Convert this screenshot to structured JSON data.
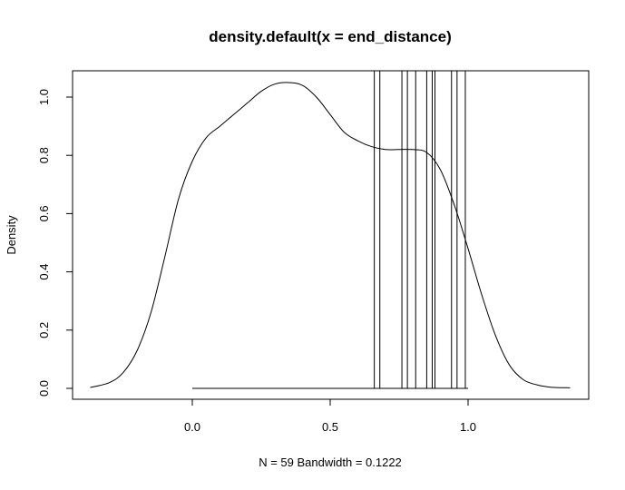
{
  "chart_data": {
    "type": "line",
    "title": "density.default(x = end_distance)",
    "xlabel": "N = 59   Bandwidth = 0.1222",
    "ylabel": "Density",
    "xlim": [
      -0.37,
      1.37
    ],
    "ylim": [
      0,
      1.05
    ],
    "x_ticks": [
      {
        "value": 0.0,
        "label": "0.0"
      },
      {
        "value": 0.5,
        "label": "0.5"
      },
      {
        "value": 1.0,
        "label": "1.0"
      }
    ],
    "y_ticks": [
      {
        "value": 0.0,
        "label": "0.0"
      },
      {
        "value": 0.2,
        "label": "0.2"
      },
      {
        "value": 0.4,
        "label": "0.4"
      },
      {
        "value": 0.6,
        "label": "0.6"
      },
      {
        "value": 0.8,
        "label": "0.8"
      },
      {
        "value": 1.0,
        "label": "1.0"
      }
    ],
    "grid": false,
    "legend": "none",
    "density_curve": {
      "x": [
        -0.37,
        -0.3,
        -0.25,
        -0.2,
        -0.15,
        -0.1,
        -0.05,
        0.0,
        0.05,
        0.1,
        0.15,
        0.2,
        0.25,
        0.3,
        0.35,
        0.4,
        0.45,
        0.5,
        0.55,
        0.6,
        0.65,
        0.7,
        0.75,
        0.8,
        0.85,
        0.9,
        0.95,
        1.0,
        1.05,
        1.1,
        1.15,
        1.2,
        1.25,
        1.3,
        1.37
      ],
      "y": [
        0.003,
        0.02,
        0.055,
        0.13,
        0.26,
        0.45,
        0.65,
        0.78,
        0.86,
        0.9,
        0.94,
        0.98,
        1.02,
        1.045,
        1.05,
        1.04,
        1.0,
        0.94,
        0.88,
        0.85,
        0.83,
        0.82,
        0.82,
        0.82,
        0.81,
        0.75,
        0.63,
        0.48,
        0.32,
        0.18,
        0.08,
        0.03,
        0.012,
        0.004,
        0.002
      ]
    },
    "vertical_lines_x": [
      0.66,
      0.68,
      0.76,
      0.78,
      0.81,
      0.85,
      0.87,
      0.88,
      0.94,
      0.96,
      0.99
    ],
    "zero_line_x_range": [
      0.0,
      1.0
    ]
  }
}
